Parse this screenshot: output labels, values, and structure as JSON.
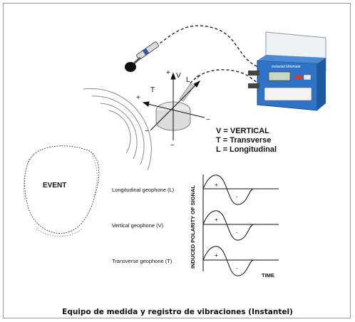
{
  "figure": {
    "event_label": "EVENT",
    "axes": {
      "v": "V",
      "t": "T",
      "l": "L",
      "plus": "+",
      "minus": "−"
    },
    "legend": {
      "vertical": "V = VERTICAL",
      "transverse": "T = Transverse",
      "longitudinal": "L = Longitudinal"
    },
    "geophones": [
      {
        "label": "Longitudinal geophone (L)",
        "plus": "+",
        "minus": "-"
      },
      {
        "label": "Vertical geophone (V)",
        "plus": "+",
        "minus": "-"
      },
      {
        "label": "Transverse geophone (T)",
        "plus": "+",
        "minus": "-"
      }
    ],
    "signal_axis_label": "INDUCED POLARITY OF SIGNAL",
    "time_label": "TIME",
    "device_brand": "Instantel Minimate"
  },
  "caption": "Equipo de medida y registro de vibraciones (Instantel)"
}
